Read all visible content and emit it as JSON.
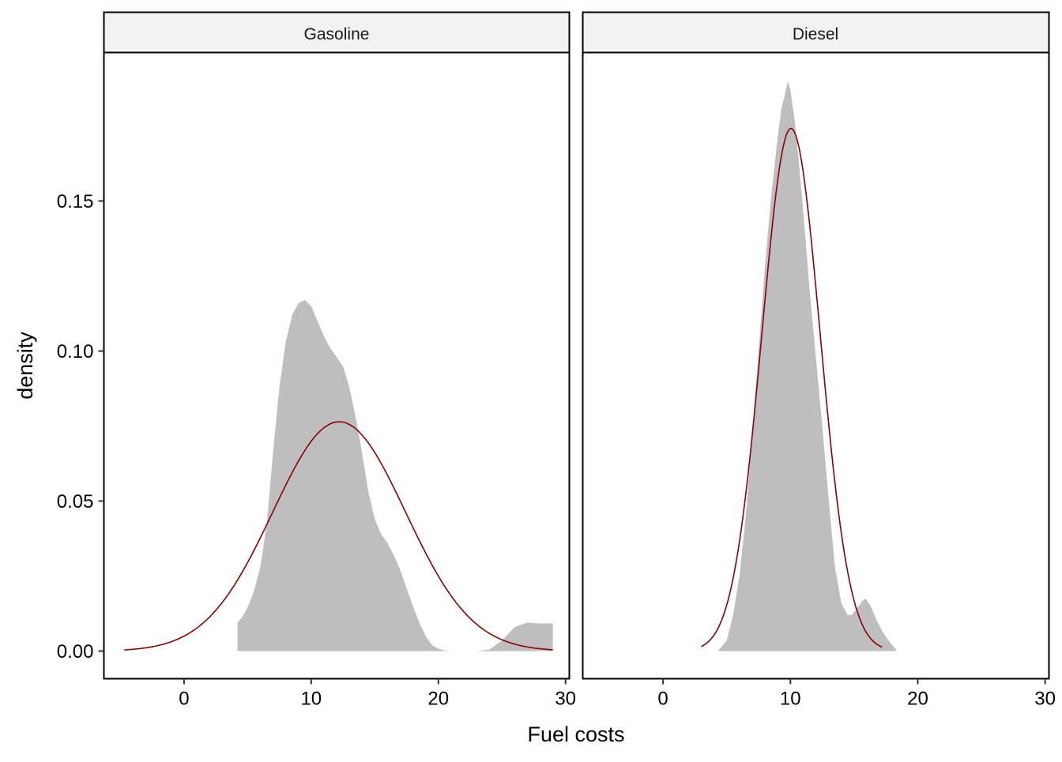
{
  "chart_data": {
    "type": "area",
    "xlabel": "Fuel costs",
    "ylabel": "density",
    "xlim": [
      -6.3,
      30.3
    ],
    "ylim": [
      -0.0092,
      0.1995
    ],
    "x_ticks": [
      0,
      10,
      20,
      30
    ],
    "y_ticks": [
      0.0,
      0.05,
      0.1,
      0.15
    ],
    "y_tick_labels": [
      "0.00",
      "0.05",
      "0.10",
      "0.15"
    ],
    "grid": false,
    "legend": "none",
    "colors": {
      "density_fill": "#bebebe",
      "normal_curve": "#8b0000",
      "strip": "#f2f2f2"
    },
    "panels": [
      {
        "name": "Gasoline",
        "density": {
          "x": [
            4.2,
            4.6,
            5.0,
            5.5,
            6.0,
            6.5,
            7.0,
            7.5,
            8.0,
            8.5,
            9.0,
            9.5,
            10.0,
            10.5,
            11.0,
            11.5,
            12.0,
            12.5,
            13.0,
            13.5,
            14.0,
            14.5,
            15.0,
            15.5,
            16.0,
            16.5,
            17.0,
            17.5,
            18.0,
            18.5,
            19.0,
            19.5,
            20.0,
            20.5,
            21.0,
            22.0,
            23.0,
            24.0,
            25.0,
            26.0,
            27.0,
            28.0,
            29.0
          ],
          "y": [
            0.0095,
            0.0115,
            0.0145,
            0.02,
            0.028,
            0.042,
            0.066,
            0.088,
            0.103,
            0.112,
            0.116,
            0.117,
            0.115,
            0.11,
            0.105,
            0.101,
            0.098,
            0.095,
            0.088,
            0.078,
            0.066,
            0.053,
            0.044,
            0.039,
            0.036,
            0.032,
            0.027,
            0.021,
            0.015,
            0.0095,
            0.005,
            0.002,
            0.0008,
            0.0002,
            0.0,
            0.0,
            0.0,
            0.0005,
            0.0035,
            0.008,
            0.0095,
            0.0092,
            0.0093
          ]
        },
        "normal": {
          "mean": 12.2,
          "sd": 5.22,
          "x_range": [
            -4.7,
            29.0
          ]
        }
      },
      {
        "name": "Diesel",
        "density": {
          "x": [
            4.3,
            5.0,
            5.5,
            6.0,
            6.5,
            7.0,
            7.5,
            8.0,
            8.5,
            9.0,
            9.3,
            9.6,
            9.8,
            10.0,
            10.3,
            10.6,
            11.0,
            11.5,
            12.0,
            12.5,
            13.0,
            13.5,
            14.0,
            14.5,
            14.8,
            15.2,
            15.6,
            15.9,
            16.3,
            16.8,
            17.3,
            17.8,
            18.3
          ],
          "y": [
            0.0,
            0.0035,
            0.012,
            0.025,
            0.045,
            0.072,
            0.1,
            0.128,
            0.152,
            0.171,
            0.181,
            0.186,
            0.19,
            0.187,
            0.178,
            0.166,
            0.147,
            0.121,
            0.098,
            0.075,
            0.051,
            0.028,
            0.016,
            0.012,
            0.012,
            0.014,
            0.0165,
            0.0175,
            0.015,
            0.01,
            0.006,
            0.003,
            0.0005
          ]
        },
        "normal": {
          "mean": 10.05,
          "sd": 2.29,
          "x_range": [
            3.0,
            17.2
          ]
        }
      }
    ]
  }
}
